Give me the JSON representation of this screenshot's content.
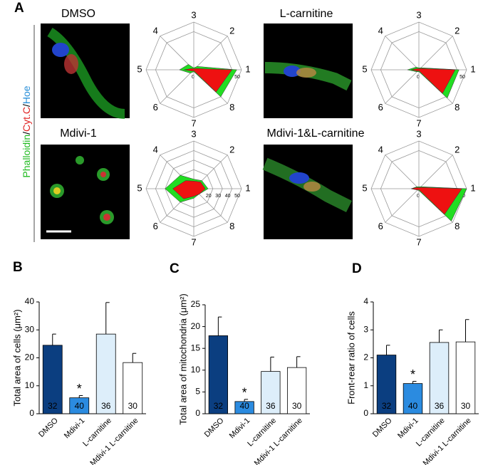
{
  "panel_labels": [
    "A",
    "B",
    "C",
    "D"
  ],
  "side_label": [
    "Phalloidin",
    "/",
    "Cyt.C",
    "/",
    "Hoe"
  ],
  "image_labels": [
    "DMSO",
    "L-carnitine",
    "Mdivi-1",
    "Mdivi-1&L-carnitine"
  ],
  "chart_data": [
    {
      "type": "radar",
      "axes": [
        "1",
        "2",
        "3",
        "4",
        "5",
        "6",
        "7",
        "8"
      ],
      "rlim": [
        0,
        50
      ],
      "rticks": [
        0,
        40,
        50
      ],
      "series": [
        {
          "color": "#22dd22",
          "values": [
            45,
            5,
            2,
            8,
            15,
            5,
            2,
            40
          ]
        },
        {
          "color": "#ee1111",
          "values": [
            40,
            2,
            1,
            2,
            10,
            2,
            1,
            33
          ]
        }
      ]
    },
    {
      "type": "radar",
      "axes": [
        "1",
        "2",
        "3",
        "4",
        "5",
        "6",
        "7",
        "8"
      ],
      "rlim": [
        0,
        50
      ],
      "rticks": [
        0,
        40,
        50
      ],
      "series": [
        {
          "color": "#22dd22",
          "values": [
            42,
            3,
            2,
            4,
            12,
            3,
            2,
            42
          ]
        },
        {
          "color": "#ee1111",
          "values": [
            38,
            2,
            1,
            2,
            8,
            2,
            1,
            35
          ]
        }
      ]
    },
    {
      "type": "radar",
      "axes": [
        "1",
        "2",
        "3",
        "4",
        "5",
        "6",
        "7",
        "8"
      ],
      "rlim": [
        0,
        50
      ],
      "rticks": [
        0,
        20,
        30,
        40,
        50
      ],
      "series": [
        {
          "color": "#22dd22",
          "values": [
            15,
            12,
            10,
            20,
            30,
            20,
            10,
            8
          ]
        },
        {
          "color": "#ee1111",
          "values": [
            12,
            10,
            8,
            12,
            22,
            15,
            8,
            8
          ]
        }
      ]
    },
    {
      "type": "radar",
      "axes": [
        "1",
        "2",
        "3",
        "4",
        "5",
        "6",
        "7",
        "8"
      ],
      "rlim": [
        0,
        50
      ],
      "rticks": [
        0,
        40,
        50
      ],
      "series": [
        {
          "color": "#22dd22",
          "values": [
            50,
            3,
            2,
            3,
            8,
            2,
            2,
            48
          ]
        },
        {
          "color": "#ee1111",
          "values": [
            45,
            2,
            1,
            2,
            8,
            2,
            1,
            38
          ]
        }
      ]
    },
    {
      "type": "bar",
      "ylabel": "Total area of cells (μm²)",
      "categories": [
        "DMSO",
        "Mdivi-1",
        "L-carnitine",
        "Mdivi-1 L-carnitine"
      ],
      "values": [
        24.5,
        5.7,
        28.5,
        18.3
      ],
      "errors": [
        4,
        0.8,
        11.3,
        3.3
      ],
      "n_labels": [
        "32",
        "40",
        "36",
        "30"
      ],
      "colors": [
        "#0b3e80",
        "#2b8be0",
        "#ddeefa",
        "#ffffff"
      ],
      "asterisk": {
        "text": "*",
        "category": "Mdivi-1"
      },
      "ylim": [
        0,
        40
      ],
      "yticks": [
        0,
        10,
        20,
        30,
        40
      ]
    },
    {
      "type": "bar",
      "ylabel": "Total area of mitochondria (μm²)",
      "categories": [
        "DMSO",
        "Mdivi-1",
        "L-carnitine",
        "Mdivi-1 L-carnitine"
      ],
      "values": [
        17.9,
        2.8,
        9.7,
        10.6
      ],
      "errors": [
        4.3,
        0.5,
        3.3,
        2.5
      ],
      "n_labels": [
        "32",
        "40",
        "36",
        "30"
      ],
      "colors": [
        "#0b3e80",
        "#2b8be0",
        "#ddeefa",
        "#ffffff"
      ],
      "asterisk": {
        "text": "*",
        "category": "Mdivi-1"
      },
      "ylim": [
        0,
        25
      ],
      "yticks": [
        0,
        5,
        10,
        15,
        20,
        25
      ]
    },
    {
      "type": "bar",
      "ylabel": "Front-rear ratio of cells",
      "categories": [
        "DMSO",
        "Mdivi-1",
        "L-carnitine",
        "Mdivi-1 L-carnitine"
      ],
      "values": [
        2.1,
        1.08,
        2.55,
        2.57
      ],
      "errors": [
        0.35,
        0.08,
        0.45,
        0.8
      ],
      "n_labels": [
        "32",
        "40",
        "36",
        "30"
      ],
      "colors": [
        "#0b3e80",
        "#2b8be0",
        "#ddeefa",
        "#ffffff"
      ],
      "asterisk": {
        "text": "*",
        "category": "Mdivi-1"
      },
      "ylim": [
        0,
        4
      ],
      "yticks": [
        0,
        1,
        2,
        3,
        4
      ]
    }
  ]
}
